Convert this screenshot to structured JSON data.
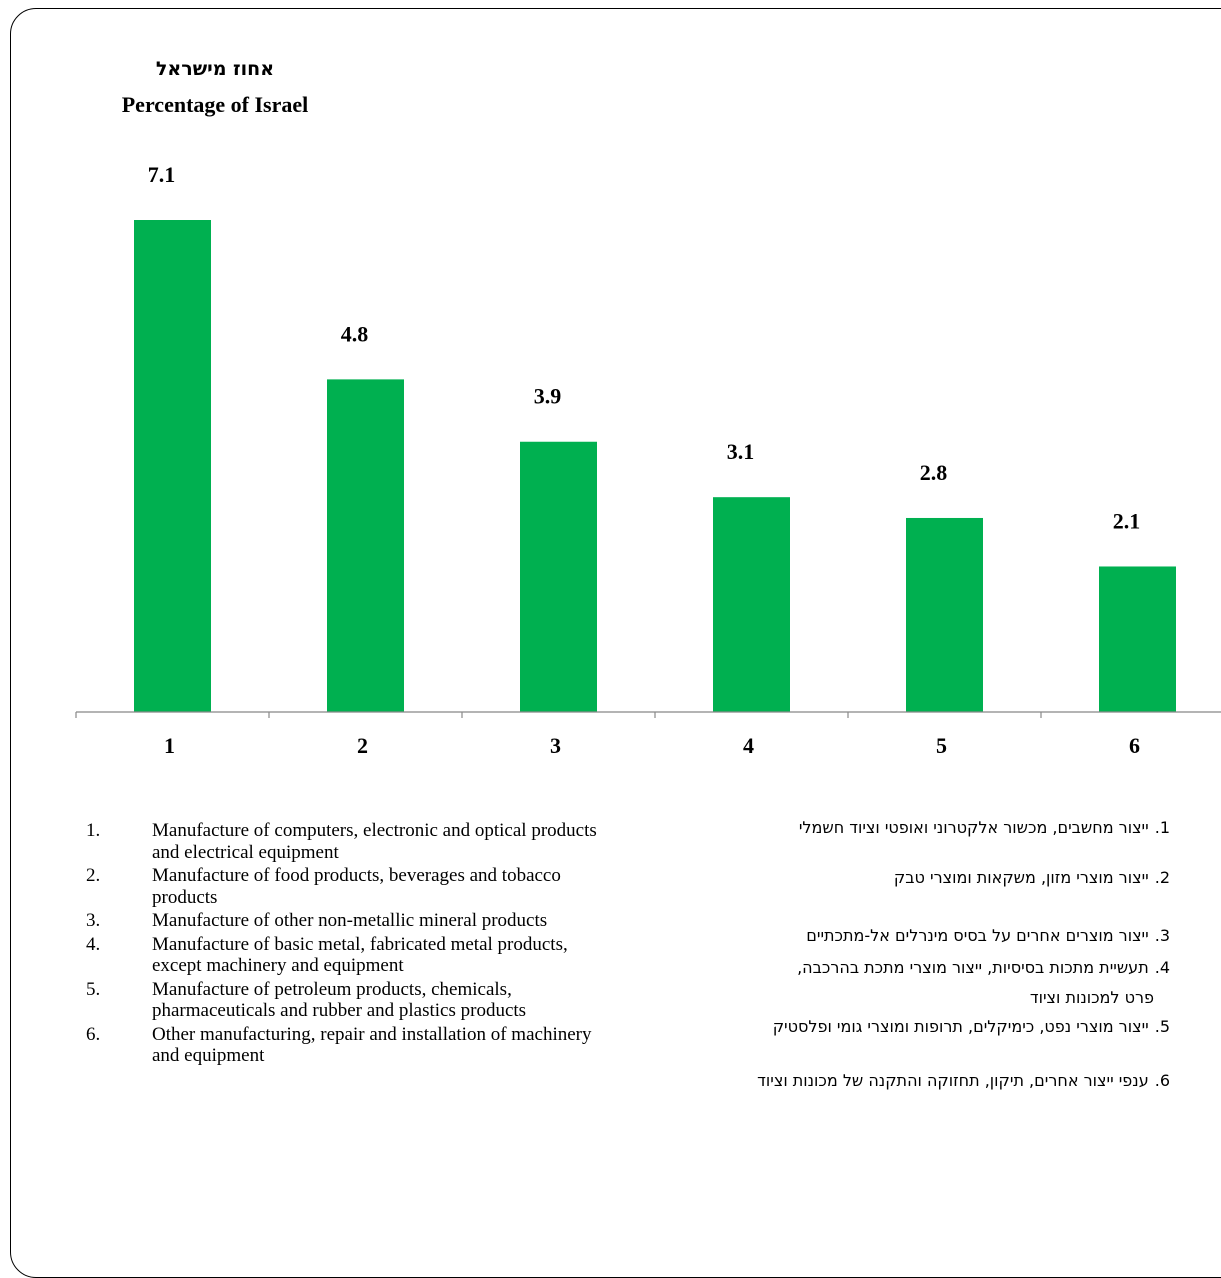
{
  "chart_data": {
    "type": "bar",
    "categories": [
      "1",
      "2",
      "3",
      "4",
      "5",
      "6"
    ],
    "values": [
      7.1,
      4.8,
      3.9,
      3.1,
      2.8,
      2.1
    ],
    "data_labels": [
      "7.1",
      "4.8",
      "3.9",
      "3.1",
      "2.8",
      "2.1"
    ],
    "ylabel_he": "אחוז מישראל",
    "ylabel_en": "Percentage of Israel",
    "xlabel": "",
    "ylim": [
      0,
      7.1
    ],
    "bar_color": "#00b050",
    "grid": false,
    "legend": "none"
  },
  "legend_en": [
    {
      "num": "1.",
      "text": "Manufacture of computers,  electronic and optical products and electrical equipment"
    },
    {
      "num": "2.",
      "text": "Manufacture of food products, beverages and tobacco products"
    },
    {
      "num": "3.",
      "text": "Manufacture of other non-metallic mineral products"
    },
    {
      "num": "4.",
      "text": "Manufacture of basic metal, fabricated metal products, except machinery and equipment"
    },
    {
      "num": "5.",
      "text": "Manufacture of petroleum products, chemicals, pharmaceuticals and rubber and plastics products"
    },
    {
      "num": "6.",
      "text": "Other manufacturing, repair and installation of machinery and equipment"
    }
  ],
  "legend_he": [
    {
      "num": "1.",
      "text": "ייצור מחשבים, מכשור אלקטרוני ואופטי וציוד חשמלי"
    },
    {
      "num": "2.",
      "text": "ייצור מוצרי מזון, משקאות ומוצרי טבק"
    },
    {
      "num": "3.",
      "text": "ייצור מוצרים אחרים על בסיס מינרלים אל-מתכתיים"
    },
    {
      "num": "4.",
      "text": "תעשיית מתכות בסיסיות, ייצור מוצרי מתכת בהרכבה,",
      "cont": "פרט למכונות וציוד"
    },
    {
      "num": "5.",
      "text": "ייצור מוצרי נפט, כימיקלים, תרופות ומוצרי גומי ופלסטיק"
    },
    {
      "num": "6.",
      "text": "ענפי ייצור אחרים, תיקון, תחזוקה והתקנה של מכונות וציוד"
    }
  ]
}
